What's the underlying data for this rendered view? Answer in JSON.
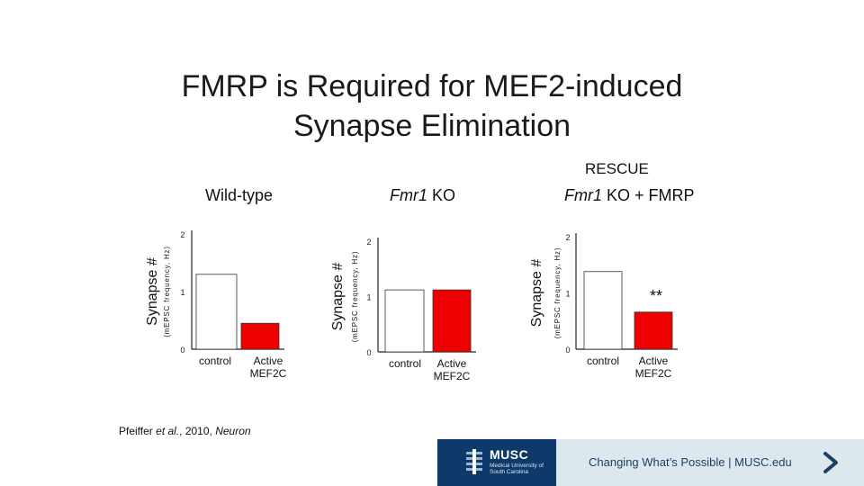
{
  "title": {
    "line1": "FMRP is Required for MEF2-induced",
    "line2": "Synapse Elimination"
  },
  "rescue_label": "RESCUE",
  "panels": [
    {
      "title_prefix": "Wild-type",
      "title_italic": "",
      "title_suffix": ""
    },
    {
      "title_prefix": "",
      "title_italic": "Fmr1",
      "title_suffix": " KO"
    },
    {
      "title_prefix": "",
      "title_italic": "Fmr1",
      "title_suffix": " KO + FMRP"
    }
  ],
  "chart_data": [
    {
      "type": "bar",
      "categories": [
        "control",
        "Active MEF2C"
      ],
      "category_lines": [
        [
          "control"
        ],
        [
          "Active",
          "MEF2C"
        ]
      ],
      "values": [
        1.3,
        0.45
      ],
      "colors": [
        "#ffffff",
        "#ee0000"
      ],
      "ylabel": "Synapse #",
      "ylabel_sub": "(mEPSC frequency, Hz)",
      "yticks": [
        "0",
        "1",
        "2"
      ],
      "ylim": [
        0,
        2
      ],
      "annotation": ""
    },
    {
      "type": "bar",
      "categories": [
        "control",
        "Active MEF2C"
      ],
      "category_lines": [
        [
          "control"
        ],
        [
          "Active",
          "MEF2C"
        ]
      ],
      "values": [
        1.12,
        1.12
      ],
      "colors": [
        "#ffffff",
        "#ee0000"
      ],
      "ylabel": "Synapse #",
      "ylabel_sub": "(mEPSC frequency, Hz)",
      "yticks": [
        "0",
        "1",
        "2"
      ],
      "ylim": [
        0,
        2
      ],
      "annotation": ""
    },
    {
      "type": "bar",
      "categories": [
        "control",
        "Active MEF2C"
      ],
      "category_lines": [
        [
          "control"
        ],
        [
          "Active",
          "MEF2C"
        ]
      ],
      "values": [
        1.38,
        0.66
      ],
      "colors": [
        "#ffffff",
        "#ee0000"
      ],
      "ylabel": "Synapse #",
      "ylabel_sub": "(mEPSC frequency, Hz)",
      "yticks": [
        "0",
        "1",
        "2"
      ],
      "ylim": [
        0,
        2
      ],
      "annotation": "**"
    }
  ],
  "citation": {
    "authors": "Pfeiffer ",
    "etal": "et al.",
    "year": ", 2010, ",
    "journal": "Neuron"
  },
  "footer": {
    "logo_name": "MUSC",
    "logo_sub": "Medical University of South Carolina",
    "tagline": "Changing What’s Possible  |  MUSC.edu",
    "arrow_icon": "chevron-right-icon",
    "logo_icon": "musc-building-icon",
    "logo_bg": "#0e3a6b",
    "band_bg": "#dde8ee"
  }
}
